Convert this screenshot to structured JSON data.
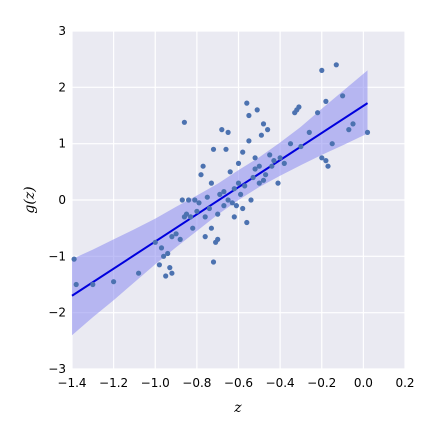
{
  "chart_data": {
    "type": "scatter",
    "title": "",
    "xlabel": "z",
    "ylabel": "g(z)",
    "xlim": [
      -1.4,
      0.2
    ],
    "ylim": [
      -3,
      3
    ],
    "x_ticks": [
      "−1.4",
      "−1.2",
      "−1.0",
      "−0.8",
      "−0.6",
      "−0.4",
      "−0.2",
      "0.0",
      "0.2"
    ],
    "y_ticks": [
      "−3",
      "−2",
      "−1",
      "0",
      "1",
      "2",
      "3"
    ],
    "grid": true,
    "colors": {
      "background": "#EAEAF2",
      "grid": "#FFFFFF",
      "points": "#4C72B0",
      "regression_line": "#0000DD",
      "confidence_band": "#8A8AF0"
    },
    "regression": {
      "x": [
        -1.4,
        0.02
      ],
      "y": [
        -1.7,
        1.72
      ]
    },
    "confidence_band": {
      "x": [
        -1.4,
        -1.3,
        -1.2,
        -1.1,
        -1.0,
        -0.9,
        -0.8,
        -0.7,
        -0.6,
        -0.5,
        -0.4,
        -0.3,
        -0.2,
        -0.1,
        0.02
      ],
      "upper": [
        -1.05,
        -0.88,
        -0.7,
        -0.52,
        -0.33,
        -0.12,
        0.08,
        0.29,
        0.53,
        0.76,
        1.02,
        1.3,
        1.62,
        1.93,
        2.3
      ],
      "lower": [
        -2.4,
        -2.08,
        -1.78,
        -1.46,
        -1.14,
        -0.84,
        -0.55,
        -0.26,
        0.0,
        0.23,
        0.43,
        0.62,
        0.8,
        0.97,
        1.18
      ]
    },
    "points": [
      {
        "x": -1.39,
        "y": -1.05
      },
      {
        "x": -1.38,
        "y": -1.5
      },
      {
        "x": -1.3,
        "y": -1.5
      },
      {
        "x": -1.2,
        "y": -1.45
      },
      {
        "x": -1.08,
        "y": -1.3
      },
      {
        "x": -1.0,
        "y": -0.75
      },
      {
        "x": -0.98,
        "y": -1.15
      },
      {
        "x": -0.97,
        "y": -0.85
      },
      {
        "x": -0.96,
        "y": -1.0
      },
      {
        "x": -0.95,
        "y": -1.35
      },
      {
        "x": -0.94,
        "y": -0.95
      },
      {
        "x": -0.93,
        "y": -1.2
      },
      {
        "x": -0.92,
        "y": -0.65
      },
      {
        "x": -0.92,
        "y": -1.3
      },
      {
        "x": -0.9,
        "y": -0.6
      },
      {
        "x": -0.88,
        "y": -0.7
      },
      {
        "x": -0.87,
        "y": 0.0
      },
      {
        "x": -0.86,
        "y": 1.38
      },
      {
        "x": -0.86,
        "y": -0.3
      },
      {
        "x": -0.85,
        "y": -0.25
      },
      {
        "x": -0.84,
        "y": 0.0
      },
      {
        "x": -0.83,
        "y": -0.3
      },
      {
        "x": -0.82,
        "y": -0.5
      },
      {
        "x": -0.81,
        "y": 0.0
      },
      {
        "x": -0.8,
        "y": -0.2
      },
      {
        "x": -0.79,
        "y": -0.05
      },
      {
        "x": -0.78,
        "y": 0.45
      },
      {
        "x": -0.77,
        "y": 0.6
      },
      {
        "x": -0.76,
        "y": -0.65
      },
      {
        "x": -0.76,
        "y": -0.3
      },
      {
        "x": -0.75,
        "y": 0.05
      },
      {
        "x": -0.74,
        "y": -0.15
      },
      {
        "x": -0.73,
        "y": -0.5
      },
      {
        "x": -0.73,
        "y": 0.3
      },
      {
        "x": -0.72,
        "y": -1.1
      },
      {
        "x": -0.72,
        "y": 0.9
      },
      {
        "x": -0.71,
        "y": -0.75
      },
      {
        "x": -0.7,
        "y": -0.25
      },
      {
        "x": -0.7,
        "y": -0.7
      },
      {
        "x": -0.69,
        "y": 0.1
      },
      {
        "x": -0.68,
        "y": 1.25
      },
      {
        "x": -0.67,
        "y": 0.15
      },
      {
        "x": -0.67,
        "y": -0.1
      },
      {
        "x": -0.66,
        "y": 0.9
      },
      {
        "x": -0.65,
        "y": 1.2
      },
      {
        "x": -0.65,
        "y": 0.0
      },
      {
        "x": -0.64,
        "y": 0.5
      },
      {
        "x": -0.63,
        "y": -0.05
      },
      {
        "x": -0.62,
        "y": -0.3
      },
      {
        "x": -0.62,
        "y": 0.2
      },
      {
        "x": -0.61,
        "y": -0.1
      },
      {
        "x": -0.6,
        "y": 0.3
      },
      {
        "x": -0.6,
        "y": 0.65
      },
      {
        "x": -0.59,
        "y": 0.1
      },
      {
        "x": -0.58,
        "y": 0.85
      },
      {
        "x": -0.58,
        "y": -0.15
      },
      {
        "x": -0.57,
        "y": 0.25
      },
      {
        "x": -0.56,
        "y": 1.72
      },
      {
        "x": -0.56,
        "y": -0.4
      },
      {
        "x": -0.55,
        "y": 1.5
      },
      {
        "x": -0.55,
        "y": 1.05
      },
      {
        "x": -0.54,
        "y": 0.0
      },
      {
        "x": -0.53,
        "y": 0.4
      },
      {
        "x": -0.52,
        "y": 0.55
      },
      {
        "x": -0.52,
        "y": 0.75
      },
      {
        "x": -0.51,
        "y": 1.6
      },
      {
        "x": -0.5,
        "y": 0.3
      },
      {
        "x": -0.5,
        "y": 0.6
      },
      {
        "x": -0.49,
        "y": 1.15
      },
      {
        "x": -0.48,
        "y": 1.35
      },
      {
        "x": -0.48,
        "y": 0.35
      },
      {
        "x": -0.47,
        "y": 0.45
      },
      {
        "x": -0.46,
        "y": 1.25
      },
      {
        "x": -0.45,
        "y": 0.8
      },
      {
        "x": -0.44,
        "y": 0.6
      },
      {
        "x": -0.43,
        "y": 0.7
      },
      {
        "x": -0.41,
        "y": 0.3
      },
      {
        "x": -0.4,
        "y": 0.75
      },
      {
        "x": -0.38,
        "y": 0.65
      },
      {
        "x": -0.35,
        "y": 1.0
      },
      {
        "x": -0.33,
        "y": 1.55
      },
      {
        "x": -0.32,
        "y": 1.6
      },
      {
        "x": -0.31,
        "y": 1.65
      },
      {
        "x": -0.22,
        "y": 1.55
      },
      {
        "x": -0.2,
        "y": 0.75
      },
      {
        "x": -0.2,
        "y": 2.3
      },
      {
        "x": -0.18,
        "y": 1.75
      },
      {
        "x": -0.18,
        "y": 0.7
      },
      {
        "x": -0.17,
        "y": 0.6
      },
      {
        "x": -0.15,
        "y": 1.0
      },
      {
        "x": -0.13,
        "y": 2.4
      },
      {
        "x": -0.1,
        "y": 1.85
      },
      {
        "x": -0.07,
        "y": 1.25
      },
      {
        "x": -0.05,
        "y": 1.35
      },
      {
        "x": 0.02,
        "y": 1.2
      },
      {
        "x": -0.3,
        "y": 0.95
      },
      {
        "x": -0.26,
        "y": 1.2
      }
    ]
  }
}
